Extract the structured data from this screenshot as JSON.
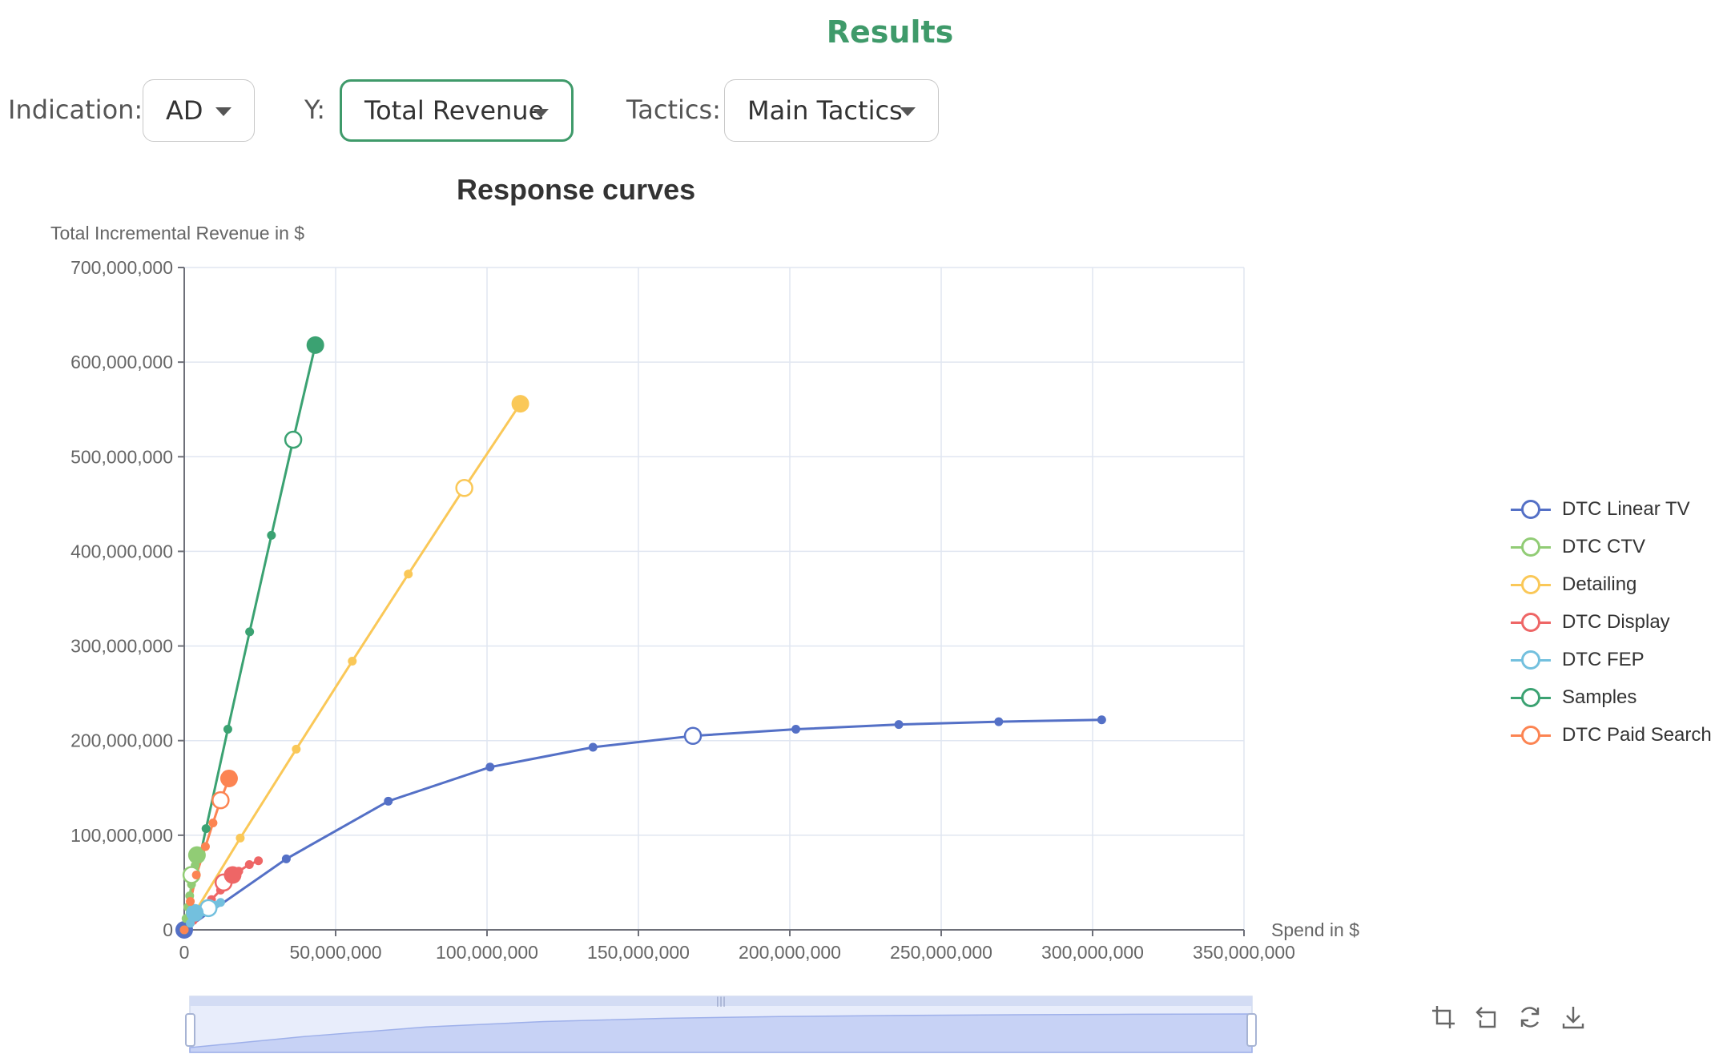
{
  "header": {
    "title": "Results"
  },
  "controls": {
    "indication": {
      "label": "Indication:",
      "value": "AD"
    },
    "y": {
      "label": "Y:",
      "value": "Total Revenue"
    },
    "tactics": {
      "label": "Tactics:",
      "value": "Main Tactics"
    }
  },
  "toolbox": {
    "icons": [
      "zoom-select-icon",
      "zoom-undo-icon",
      "restore-icon",
      "download-icon"
    ]
  },
  "chart_data": {
    "type": "line",
    "title": "Response curves",
    "ylabel": "Total Incremental Revenue in $",
    "xlabel": "Spend in $",
    "xlim": [
      0,
      350000000
    ],
    "ylim": [
      0,
      700000000
    ],
    "x_ticks": [
      0,
      50000000,
      100000000,
      150000000,
      200000000,
      250000000,
      300000000,
      350000000
    ],
    "y_ticks": [
      0,
      100000000,
      200000000,
      300000000,
      400000000,
      500000000,
      600000000,
      700000000
    ],
    "x_tick_labels": [
      "0",
      "50,000,000",
      "100,000,000",
      "150,000,000",
      "200,000,000",
      "250,000,000",
      "300,000,000",
      "350,000,000"
    ],
    "y_tick_labels": [
      "0",
      "100,000,000",
      "200,000,000",
      "300,000,000",
      "400,000,000",
      "500,000,000",
      "600,000,000",
      "700,000,000"
    ],
    "grid": true,
    "legend_position": "right",
    "series": [
      {
        "name": "DTC Linear TV",
        "color": "#5470c6",
        "points": [
          [
            0,
            0
          ],
          [
            33700000,
            75000000
          ],
          [
            67400000,
            136000000
          ],
          [
            101000000,
            172000000
          ],
          [
            135000000,
            193000000
          ],
          [
            168000000,
            205000000
          ],
          [
            202000000,
            212000000
          ],
          [
            236000000,
            217000000
          ],
          [
            269000000,
            220000000
          ],
          [
            303000000,
            222000000
          ]
        ],
        "open_marker": [
          168000000,
          205000000
        ],
        "large_marker": [
          0,
          0
        ]
      },
      {
        "name": "DTC CTV",
        "color": "#91cc75",
        "points": [
          [
            0,
            0
          ],
          [
            600000,
            12000000
          ],
          [
            1200000,
            24000000
          ],
          [
            1800000,
            36000000
          ],
          [
            2400000,
            48000000
          ],
          [
            3000000,
            58000000
          ],
          [
            3600000,
            68000000
          ],
          [
            4200000,
            79000000
          ]
        ],
        "open_marker": [
          2400000,
          58000000
        ],
        "large_marker": [
          4200000,
          79000000
        ]
      },
      {
        "name": "Detailing",
        "color": "#fac858",
        "points": [
          [
            0,
            0
          ],
          [
            18500000,
            97000000
          ],
          [
            37000000,
            191000000
          ],
          [
            55500000,
            284000000
          ],
          [
            74000000,
            376000000
          ],
          [
            92500000,
            467000000
          ],
          [
            111000000,
            556000000
          ]
        ],
        "open_marker": [
          92500000,
          467000000
        ],
        "large_marker": [
          111000000,
          556000000
        ]
      },
      {
        "name": "DTC Display",
        "color": "#ee6666",
        "points": [
          [
            0,
            0
          ],
          [
            3000000,
            10000000
          ],
          [
            6000000,
            22000000
          ],
          [
            9000000,
            32000000
          ],
          [
            12000000,
            42000000
          ],
          [
            15000000,
            58000000
          ],
          [
            18000000,
            62000000
          ],
          [
            21500000,
            69000000
          ],
          [
            24500000,
            73000000
          ]
        ],
        "open_marker": [
          13000000,
          50000000
        ],
        "large_marker": [
          16000000,
          58000000
        ]
      },
      {
        "name": "DTC FEP",
        "color": "#73c0de",
        "points": [
          [
            0,
            0
          ],
          [
            2000000,
            7000000
          ],
          [
            4000000,
            14000000
          ],
          [
            6000000,
            19000000
          ],
          [
            8000000,
            23000000
          ],
          [
            10000000,
            26000000
          ],
          [
            12000000,
            29000000
          ]
        ],
        "open_marker": [
          8000000,
          23000000
        ],
        "large_marker": [
          3500000,
          18000000
        ]
      },
      {
        "name": "Samples",
        "color": "#3ba272",
        "points": [
          [
            0,
            0
          ],
          [
            7200000,
            107000000
          ],
          [
            14400000,
            212000000
          ],
          [
            21600000,
            315000000
          ],
          [
            28800000,
            417000000
          ],
          [
            36000000,
            518000000
          ],
          [
            43300000,
            618000000
          ]
        ],
        "open_marker": [
          36000000,
          518000000
        ],
        "large_marker": [
          43300000,
          618000000
        ]
      },
      {
        "name": "DTC Paid Search",
        "color": "#fc8452",
        "points": [
          [
            0,
            0
          ],
          [
            2000000,
            30000000
          ],
          [
            4000000,
            58000000
          ],
          [
            7000000,
            88000000
          ],
          [
            9500000,
            113000000
          ],
          [
            12000000,
            137000000
          ],
          [
            14800000,
            160000000
          ]
        ],
        "open_marker": [
          12000000,
          137000000
        ],
        "large_marker": [
          14800000,
          160000000
        ]
      }
    ],
    "zoom_slider": {
      "start": 0,
      "end": 100
    }
  }
}
